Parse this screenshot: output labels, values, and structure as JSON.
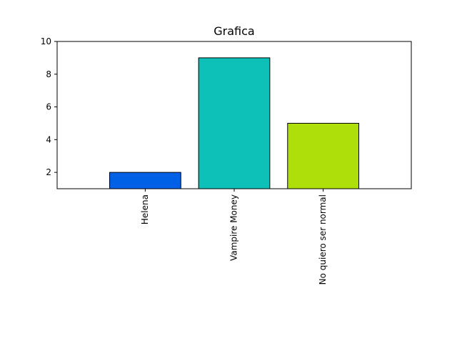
{
  "chart_data": {
    "type": "bar",
    "title": "Grafica",
    "xlabel": "",
    "ylabel": "",
    "categories": [
      "Helena",
      "Vampire Money",
      "No quiero ser normal"
    ],
    "values": [
      2,
      9,
      5
    ],
    "colors": [
      "#0060e6",
      "#0dc1b8",
      "#aedf0a"
    ],
    "edge_color": "#000000",
    "ylim": [
      1,
      10
    ],
    "yticks": [
      2,
      4,
      6,
      8,
      10
    ],
    "grid": false,
    "legend": false,
    "xtick_rotation": "vertical"
  }
}
